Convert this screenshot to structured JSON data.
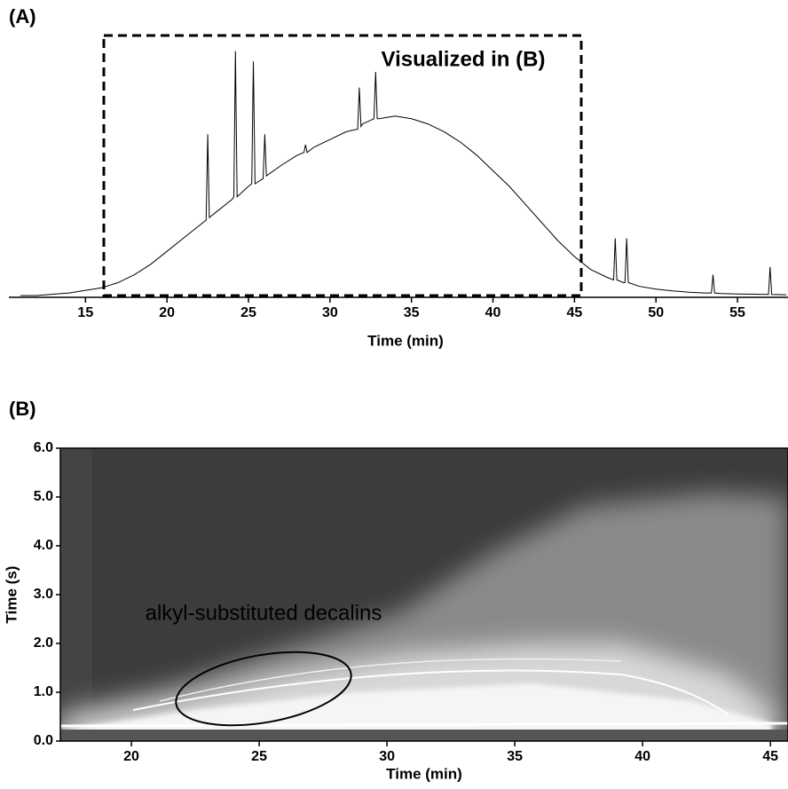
{
  "chart_data": [
    {
      "type": "line",
      "panel": "(A)",
      "annotation": "Visualized in (B)",
      "xlabel": "Time (min)",
      "color": "#000000",
      "x": [
        11,
        12,
        13,
        14,
        15,
        16,
        17,
        18,
        19,
        20,
        21,
        22,
        22.4,
        22.5,
        22.6,
        23,
        24,
        24.1,
        24.2,
        24.3,
        25,
        25.2,
        25.3,
        25.4,
        25.9,
        26,
        26.1,
        27,
        28,
        28.4,
        28.5,
        28.6,
        29,
        30,
        31,
        31.7,
        31.8,
        31.9,
        32,
        32.7,
        32.8,
        32.9,
        33,
        34,
        35,
        36,
        37,
        38,
        39,
        40,
        41,
        42,
        43,
        44,
        45,
        46,
        47,
        47.4,
        47.5,
        47.6,
        48,
        48.1,
        48.2,
        48.3,
        49,
        50,
        51,
        52,
        53,
        53.4,
        53.5,
        53.6,
        54,
        55,
        56,
        56.9,
        57,
        57.1,
        58
      ],
      "values": [
        0,
        0,
        0.5,
        1,
        2,
        3,
        5,
        8,
        12,
        17,
        22,
        27,
        29,
        62,
        30,
        32,
        37,
        38,
        94,
        38,
        42,
        43,
        90,
        43,
        45,
        62,
        46,
        50,
        54,
        55,
        58,
        55,
        57,
        60,
        63,
        64,
        80,
        65,
        66,
        68,
        86,
        68,
        68,
        69,
        68,
        66,
        63,
        59,
        54,
        48,
        42,
        35,
        28,
        21,
        15,
        10,
        7,
        6,
        22,
        6,
        5,
        5,
        22,
        5,
        3.5,
        2.5,
        1.8,
        1.3,
        1,
        1,
        8,
        1,
        0.8,
        0.6,
        0.5,
        0.4,
        11,
        0.4,
        0.3
      ],
      "xlim": [
        10.3,
        58.1
      ],
      "ylim": [
        0,
        100
      ],
      "xticks": [
        15,
        20,
        25,
        30,
        35,
        40,
        45,
        50,
        55
      ]
    },
    {
      "type": "image",
      "panel": "(B)",
      "annotation": "alkyl-substituted decalins",
      "xlabel": "Time (min)",
      "ylabel": "Time (s)",
      "xlim": [
        17.22,
        45.69
      ],
      "ylim": [
        0,
        6
      ],
      "xticks": [
        20,
        25,
        30,
        35,
        40,
        45
      ],
      "yticks": [
        {
          "value": 0,
          "label": "0.0"
        },
        {
          "value": 1,
          "label": "1.0"
        },
        {
          "value": 2,
          "label": "2.0"
        },
        {
          "value": 3,
          "label": "3.0"
        },
        {
          "value": 4,
          "label": "4.0"
        },
        {
          "value": 5,
          "label": "5.0"
        },
        {
          "value": 6,
          "label": "6.0"
        }
      ]
    }
  ]
}
